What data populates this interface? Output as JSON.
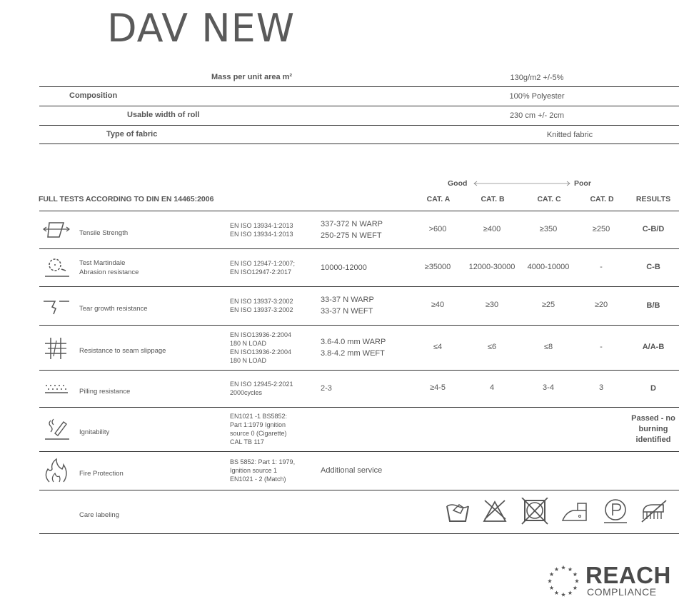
{
  "title": "DAV NEW",
  "specs": [
    {
      "label": "Mass per unit area m²",
      "value": "130g/m2 +/-5%"
    },
    {
      "label": "Composition",
      "value": "100% Polyester"
    },
    {
      "label": "Usable width of roll",
      "value": "230 cm +/- 2cm"
    },
    {
      "label": "Type of fabric",
      "value": "Knitted fabric"
    }
  ],
  "tests": {
    "heading": "FULL TESTS ACCORDING TO DIN EN 14465:2006",
    "scale_good": "Good",
    "scale_poor": "Poor",
    "columns": [
      "CAT. A",
      "CAT. B",
      "CAT. C",
      "CAT. D",
      "RESULTS"
    ],
    "rows": [
      {
        "icon": "tensile-strength-icon",
        "label": [
          "Tensile Strength"
        ],
        "standard": [
          "EN ISO 13934-1:2013",
          "EN ISO 13934-1:2013"
        ],
        "value": [
          "337-372 N WARP",
          "250-275 N WEFT"
        ],
        "cats": [
          ">600",
          "≥400",
          "≥350",
          "≥250"
        ],
        "result": [
          "C-B/D"
        ]
      },
      {
        "icon": "martindale-abrasion-icon",
        "label": [
          "Test Martindale",
          "Abrasion resistance"
        ],
        "standard": [
          "EN ISO 12947-1:2007;",
          "EN ISO12947-2:2017"
        ],
        "value": [
          "10000-12000"
        ],
        "cats": [
          "≥35000",
          "12000-30000",
          "4000-10000",
          "-"
        ],
        "result": [
          "C-B"
        ]
      },
      {
        "icon": "tear-growth-icon",
        "label": [
          "Tear growth resistance"
        ],
        "standard": [
          "EN ISO 13937-3:2002",
          "EN ISO 13937-3:2002"
        ],
        "value": [
          "33-37 N WARP",
          "33-37 N WEFT"
        ],
        "cats": [
          "≥40",
          "≥30",
          "≥25",
          "≥20"
        ],
        "result": [
          "B/B"
        ]
      },
      {
        "icon": "seam-slippage-icon",
        "label": [
          "Resistance to seam slippage"
        ],
        "standard": [
          "EN ISO13936-2:2004",
          "180 N LOAD",
          "EN ISO13936-2:2004",
          "180 N LOAD"
        ],
        "value": [
          "3.6-4.0 mm WARP",
          "3.8-4.2 mm WEFT"
        ],
        "cats": [
          "≤4",
          "≤6",
          "≤8",
          "-"
        ],
        "result": [
          "A/A-B"
        ]
      },
      {
        "icon": "pilling-icon",
        "label": [
          "Pilling resistance"
        ],
        "standard": [
          "EN ISO 12945-2:2021",
          "2000cycles"
        ],
        "value": [
          "2-3"
        ],
        "cats": [
          "≥4-5",
          "4",
          "3-4",
          "3"
        ],
        "result": [
          "D"
        ]
      },
      {
        "icon": "cigarette-icon",
        "label": [
          "Ignitability"
        ],
        "standard": [
          "EN1021 -1 BS5852:",
          "Part 1:1979 Ignition",
          "source 0 (Cigarette)",
          "CAL TB 117"
        ],
        "value": [],
        "cats": [
          "",
          "",
          "",
          ""
        ],
        "result": [
          "Passed - no",
          "burning",
          "identified"
        ]
      },
      {
        "icon": "flame-icon",
        "label": [
          "Fire Protection"
        ],
        "standard": [
          "BS 5852: Part 1: 1979,",
          "Ignition source 1",
          "EN1021 - 2 (Match)"
        ],
        "value": [
          "Additional service"
        ],
        "cats": [
          "",
          "",
          "",
          ""
        ],
        "result": []
      },
      {
        "icon": "",
        "label": [
          "Care labeling"
        ],
        "standard": [],
        "value": [],
        "cats": [
          "",
          "",
          "",
          ""
        ],
        "result": []
      }
    ]
  },
  "care_icons": [
    "hand-wash-icon",
    "no-bleach-icon",
    "no-tumble-dry-icon",
    "iron-low-icon",
    "professional-clean-p-icon",
    "no-brushing-icon"
  ],
  "reach": {
    "title": "REACH",
    "subtitle": "COMPLIANCE"
  }
}
